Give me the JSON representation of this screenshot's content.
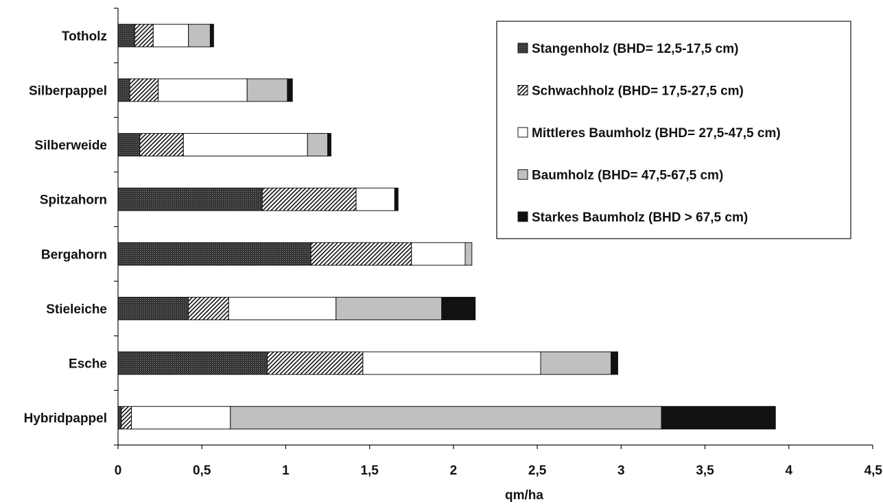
{
  "chart_data": {
    "type": "bar",
    "orientation": "horizontal",
    "stacked": true,
    "categories": [
      "Totholz",
      "Silberpappel",
      "Silberweide",
      "Spitzahorn",
      "Bergahorn",
      "Stieleiche",
      "Esche",
      "Hybridpappel"
    ],
    "series": [
      {
        "name": "Stangenholz (BHD= 12,5-17,5 cm)",
        "pattern": "cross-hatch-dark",
        "values": [
          0.1,
          0.07,
          0.13,
          0.86,
          1.15,
          0.42,
          0.89,
          0.02
        ]
      },
      {
        "name": "Schwachholz (BHD= 17,5-27,5 cm)",
        "pattern": "diagonal-hatch",
        "values": [
          0.11,
          0.17,
          0.26,
          0.56,
          0.6,
          0.24,
          0.57,
          0.06
        ]
      },
      {
        "name": "Mittleres Baumholz (BHD= 27,5-47,5 cm)",
        "pattern": "white",
        "values": [
          0.21,
          0.53,
          0.74,
          0.23,
          0.32,
          0.64,
          1.06,
          0.59
        ]
      },
      {
        "name": "Baumholz (BHD= 47,5-67,5 cm)",
        "pattern": "light-gray",
        "values": [
          0.13,
          0.24,
          0.12,
          0.0,
          0.04,
          0.63,
          0.42,
          2.57
        ]
      },
      {
        "name": "Starkes Baumholz (BHD > 67,5 cm)",
        "pattern": "black",
        "values": [
          0.02,
          0.03,
          0.02,
          0.02,
          0.0,
          0.2,
          0.04,
          0.68
        ]
      }
    ],
    "xlabel": "qm/ha",
    "ylabel": "",
    "xlim": [
      0,
      4.5
    ],
    "xticks": [
      0,
      0.5,
      1,
      1.5,
      2,
      2.5,
      3,
      3.5,
      4,
      4.5
    ],
    "xtick_labels": [
      "0",
      "0,5",
      "1",
      "1,5",
      "2",
      "2,5",
      "3",
      "3,5",
      "4",
      "4,5"
    ],
    "grid": false,
    "legend_position": "top-right",
    "colors": {
      "stangenholz": "#1a1a1a",
      "schwachholz_stroke": "#111111",
      "mittleres": "#ffffff",
      "baumholz": "#c0c0c0",
      "starkes": "#111111"
    }
  }
}
